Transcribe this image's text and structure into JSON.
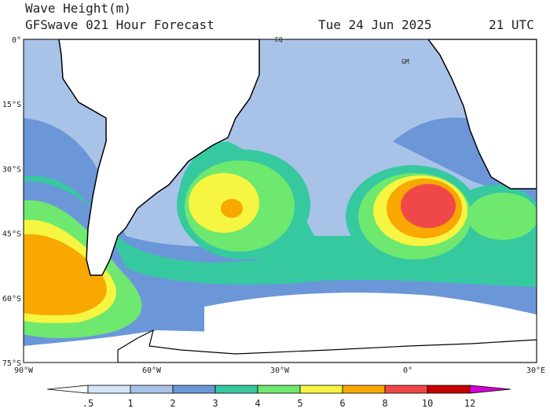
{
  "header": {
    "title": "Wave Height(m)",
    "subtitle": "GFSwave 021 Hour Forecast",
    "date": "Tue 24 Jun 2025",
    "time": "21 UTC"
  },
  "map": {
    "lat_labels": [
      "0°",
      "15°S",
      "30°S",
      "45°S",
      "60°S",
      "75°S"
    ],
    "lon_labels": [
      "90°W",
      "60°W",
      "30°W",
      "0°",
      "30°E"
    ],
    "annotations": [
      "EQ",
      "GM"
    ]
  },
  "colorbar": {
    "labels": [
      ".5",
      "1",
      "2",
      "3",
      "4",
      "5",
      "6",
      "8",
      "10",
      "12"
    ]
  }
}
